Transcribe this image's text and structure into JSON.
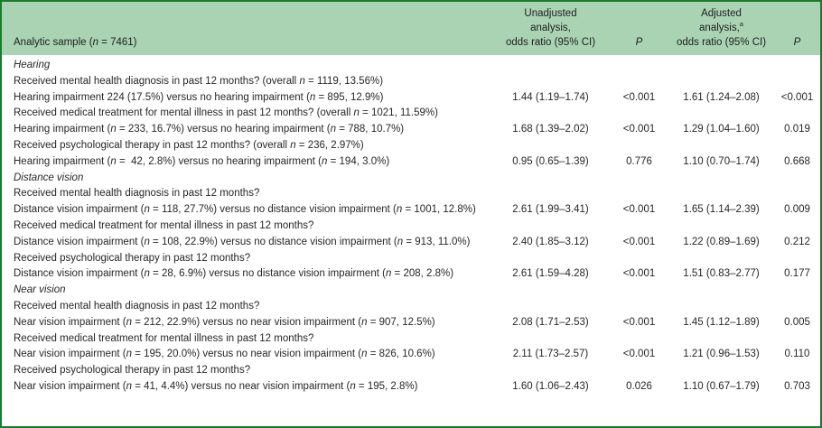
{
  "colors": {
    "header_background": "#a9d3b3",
    "table_border": "#1c7a2f",
    "text": "#262626"
  },
  "table": {
    "header": {
      "label": "Analytic sample (n = 7461)",
      "unadjusted": [
        "Unadjusted",
        "analysis,",
        "odds ratio (95% CI)"
      ],
      "adjusted_line1": "Adjusted",
      "adjusted_line2": "analysis,",
      "adjusted_sup": "a",
      "adjusted_line3": "odds ratio (95% CI)",
      "p": "P"
    },
    "rows": [
      {
        "type": "section",
        "label": "Hearing"
      },
      {
        "type": "question",
        "label": "Received mental health diagnosis in past 12 months? (overall n = 1119, 13.56%)"
      },
      {
        "type": "data",
        "label": "Hearing impairment 224 (17.5%) versus no hearing impairment (n = 895, 12.9%)",
        "or1": "1.44 (1.19–1.74)",
        "p1": "<0.001",
        "or2": "1.61 (1.24–2.08)",
        "p2": "<0.001"
      },
      {
        "type": "question",
        "label": "Received medical treatment for mental illness in past 12 months? (overall n = 1021, 11.59%)"
      },
      {
        "type": "data",
        "label": "Hearing impairment (n = 233, 16.7%) versus no hearing impairment (n = 788, 10.7%)",
        "or1": "1.68 (1.39–2.02)",
        "p1": "<0.001",
        "or2": "1.29 (1.04–1.60)",
        "p2": "0.019"
      },
      {
        "type": "question",
        "label": "Received psychological therapy in past 12 months? (overall n = 236, 2.97%)"
      },
      {
        "type": "data",
        "label": "Hearing impairment (n =  42, 2.8%) versus no hearing impairment (n = 194, 3.0%)",
        "or1": "0.95 (0.65–1.39)",
        "p1": "0.776",
        "or2": "1.10 (0.70–1.74)",
        "p2": "0.668"
      },
      {
        "type": "section",
        "label": "Distance vision"
      },
      {
        "type": "question",
        "label": "Received mental health diagnosis in past 12 months?"
      },
      {
        "type": "data",
        "label": "Distance vision impairment (n = 118, 27.7%) versus no distance vision impairment (n = 1001, 12.8%)",
        "or1": "2.61 (1.99–3.41)",
        "p1": "<0.001",
        "or2": "1.65 (1.14–2.39)",
        "p2": "0.009"
      },
      {
        "type": "question",
        "label": "Received medical treatment for mental illness in past 12 months?"
      },
      {
        "type": "data",
        "label": "Distance vision impairment (n = 108, 22.9%) versus no distance vision impairment (n = 913, 11.0%)",
        "or1": "2.40 (1.85–3.12)",
        "p1": "<0.001",
        "or2": "1.22 (0.89–1.69)",
        "p2": "0.212"
      },
      {
        "type": "question",
        "label": "Received psychological therapy in past 12 months?"
      },
      {
        "type": "data",
        "label": "Distance vision impairment (n = 28, 6.9%) versus no distance vision impairment (n = 208, 2.8%)",
        "or1": "2.61 (1.59–4.28)",
        "p1": "<0.001",
        "or2": "1.51 (0.83–2.77)",
        "p2": "0.177"
      },
      {
        "type": "section",
        "label": "Near vision"
      },
      {
        "type": "question",
        "label": "Received mental health diagnosis in past 12 months?"
      },
      {
        "type": "data",
        "label": "Near vision impairment (n = 212, 22.9%) versus no near vision impairment (n = 907, 12.5%)",
        "or1": "2.08 (1.71–2.53)",
        "p1": "<0.001",
        "or2": "1.45 (1.12–1.89)",
        "p2": "0.005"
      },
      {
        "type": "question",
        "label": "Received medical treatment for mental illness in past 12 months?"
      },
      {
        "type": "data",
        "label": "Near vision impairment (n = 195, 20.0%) versus no near vision impairment (n = 826, 10.6%)",
        "or1": "2.11 (1.73–2.57)",
        "p1": "<0.001",
        "or2": "1.21 (0.96–1.53)",
        "p2": "0.110"
      },
      {
        "type": "question",
        "label": "Received psychological therapy in past 12 months?"
      },
      {
        "type": "data",
        "label": "Near vision impairment (n = 41, 4.4%) versus no near vision impairment (n = 195, 2.8%)",
        "or1": "1.60 (1.06–2.43)",
        "p1": "0.026",
        "or2": "1.10 (0.67–1.79)",
        "p2": "0.703"
      }
    ]
  }
}
